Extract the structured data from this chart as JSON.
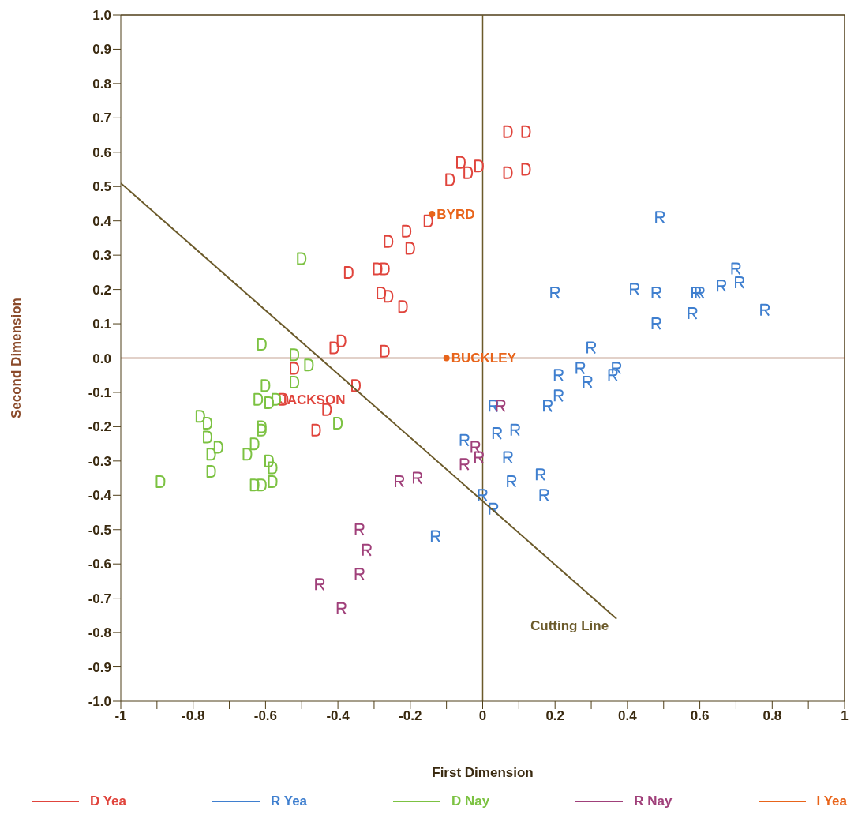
{
  "chart_data": {
    "type": "scatter",
    "xlabel": "First Dimension",
    "ylabel": "Second Dimension",
    "xlim": [
      -1,
      1
    ],
    "ylim": [
      -1,
      1
    ],
    "xticks": [
      -1,
      {
        "value": -0.9,
        "label": null
      },
      -0.8,
      {
        "value": -0.7,
        "label": null
      },
      -0.6,
      {
        "value": -0.5,
        "label": null
      },
      -0.4,
      {
        "value": -0.3,
        "label": null
      },
      -0.2,
      {
        "value": -0.1,
        "label": null
      },
      0,
      {
        "value": 0.1,
        "label": null
      },
      0.2,
      {
        "value": 0.3,
        "label": null
      },
      0.4,
      {
        "value": 0.5,
        "label": null
      },
      0.6,
      {
        "value": 0.7,
        "label": null
      },
      0.8,
      {
        "value": 0.9,
        "label": null
      },
      1
    ],
    "yticks": [
      {
        "value": -1,
        "label": "-1.0"
      },
      -0.9,
      -0.8,
      -0.7,
      -0.6,
      -0.5,
      -0.4,
      -0.3,
      -0.2,
      -0.1,
      {
        "value": 0,
        "label": "0.0"
      },
      0.1,
      0.2,
      0.3,
      0.4,
      0.5,
      0.6,
      0.7,
      0.8,
      0.9,
      {
        "value": 1,
        "label": "1.0"
      }
    ],
    "grid": false,
    "legend": "bottom",
    "ref_lines": [
      {
        "axis": "x",
        "value": 0,
        "color": "#6b5a2a"
      },
      {
        "axis": "y",
        "value": 0,
        "color": "#8a4a2a"
      }
    ],
    "series": [
      {
        "name": "D Yea",
        "color": "#e0443c",
        "type": "scatter",
        "x": [
          0.07,
          0.12,
          -0.06,
          -0.04,
          -0.01,
          -0.09,
          0.07,
          0.12,
          -0.15,
          -0.21,
          -0.26,
          -0.2,
          -0.37,
          -0.29,
          -0.27,
          -0.28,
          -0.26,
          -0.22,
          -0.41,
          -0.39,
          -0.27,
          -0.52,
          -0.35,
          -0.43,
          -0.46,
          -0.55
        ],
        "values": [
          0.66,
          0.66,
          0.57,
          0.54,
          0.56,
          0.52,
          0.54,
          0.55,
          0.4,
          0.37,
          0.34,
          0.32,
          0.25,
          0.26,
          0.26,
          0.19,
          0.18,
          0.15,
          0.03,
          0.05,
          0.02,
          -0.03,
          -0.08,
          -0.15,
          -0.21,
          -0.12
        ],
        "value_labels": [
          null,
          null,
          null,
          null,
          null,
          null,
          null,
          null,
          null,
          null,
          null,
          null,
          null,
          null,
          null,
          null,
          null,
          null,
          null,
          null,
          null,
          null,
          null,
          null,
          null,
          "JACKSON"
        ]
      },
      {
        "name": "R Yea",
        "color": "#3f7fcf",
        "type": "scatter",
        "x": [
          0.49,
          0.2,
          0.42,
          0.48,
          0.59,
          0.6,
          0.66,
          0.7,
          0.71,
          0.58,
          0.48,
          0.78,
          0.3,
          0.27,
          0.29,
          0.21,
          0.21,
          0.18,
          0.37,
          0.36,
          0.03,
          0.04,
          0.09,
          -0.05,
          0.07,
          0.08,
          0.16,
          0.17,
          0,
          0.03,
          -0.13
        ],
        "values": [
          0.41,
          0.19,
          0.2,
          0.19,
          0.19,
          0.19,
          0.21,
          0.26,
          0.22,
          0.13,
          0.1,
          0.14,
          0.03,
          -0.03,
          -0.07,
          -0.05,
          -0.11,
          -0.14,
          -0.03,
          -0.05,
          -0.14,
          -0.22,
          -0.21,
          -0.24,
          -0.29,
          -0.36,
          -0.34,
          -0.4,
          -0.4,
          -0.44,
          -0.52
        ]
      },
      {
        "name": "D Nay",
        "color": "#7cc242",
        "type": "scatter",
        "x": [
          -0.5,
          -0.61,
          -0.52,
          -0.48,
          -0.52,
          -0.6,
          -0.62,
          -0.59,
          -0.57,
          -0.78,
          -0.76,
          -0.76,
          -0.4,
          -0.61,
          -0.61,
          -0.75,
          -0.73,
          -0.65,
          -0.63,
          -0.59,
          -0.58,
          -0.58,
          -0.75,
          -0.89,
          -0.63,
          -0.61
        ],
        "values": [
          0.29,
          0.04,
          0.01,
          -0.02,
          -0.07,
          -0.08,
          -0.12,
          -0.13,
          -0.12,
          -0.17,
          -0.19,
          -0.23,
          -0.19,
          -0.2,
          -0.21,
          -0.28,
          -0.26,
          -0.28,
          -0.25,
          -0.3,
          -0.32,
          -0.36,
          -0.33,
          -0.36,
          -0.37,
          -0.37
        ]
      },
      {
        "name": "R Nay",
        "color": "#a0407a",
        "type": "scatter",
        "x": [
          0.05,
          -0.02,
          -0.01,
          -0.05,
          -0.23,
          -0.18,
          -0.34,
          -0.32,
          -0.34,
          -0.45,
          -0.39
        ],
        "values": [
          -0.14,
          -0.26,
          -0.29,
          -0.31,
          -0.36,
          -0.35,
          -0.5,
          -0.56,
          -0.63,
          -0.66,
          -0.73
        ]
      },
      {
        "name": "I Yea",
        "color": "#e8641a",
        "type": "scatter",
        "x": [
          -0.14,
          -0.1
        ],
        "values": [
          0.42,
          0
        ],
        "value_labels": [
          "BYRD",
          "BUCKLEY"
        ]
      },
      {
        "name": "Cutting Line",
        "color": "#6b5a2a",
        "type": "line",
        "x": [
          -1,
          0.37
        ],
        "values": [
          0.51,
          -0.76
        ]
      }
    ]
  }
}
